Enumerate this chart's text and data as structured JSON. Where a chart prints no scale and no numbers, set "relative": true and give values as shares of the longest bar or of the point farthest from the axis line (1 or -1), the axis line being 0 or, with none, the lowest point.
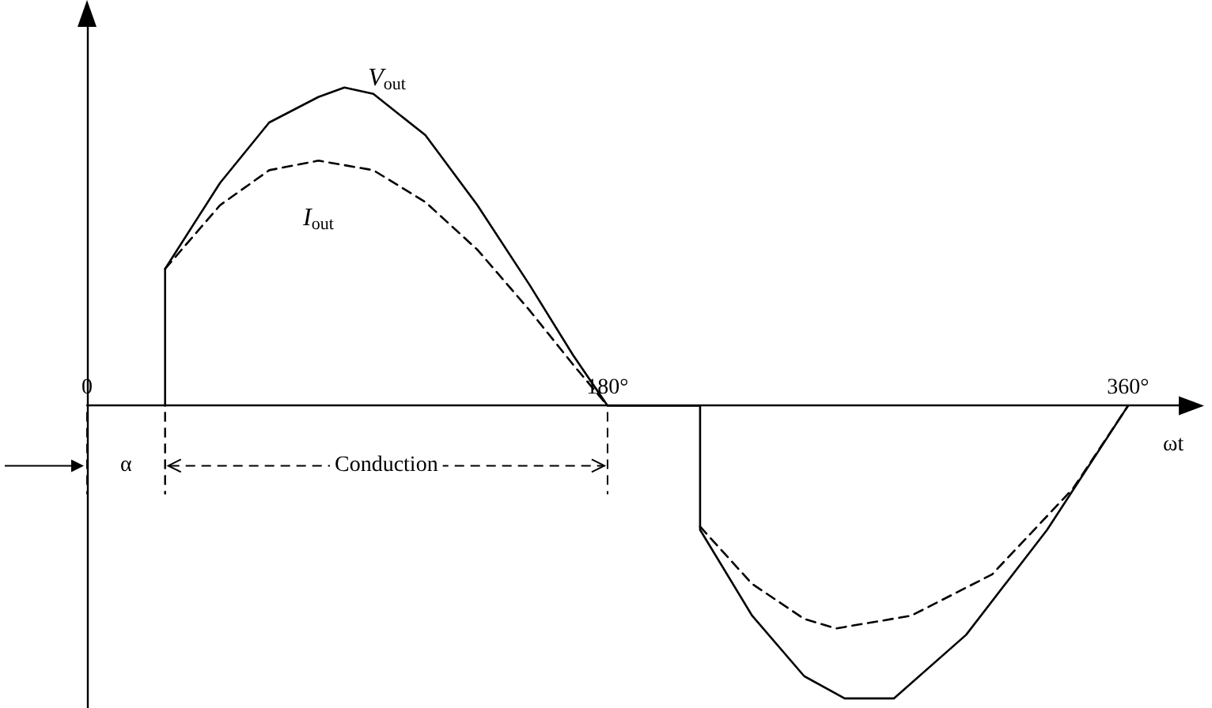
{
  "chart_data": {
    "type": "line",
    "relative": true,
    "xlabel": "ωt",
    "xlim": [
      0,
      383
    ],
    "xticks": [
      0,
      {
        "value": 180,
        "label": "180°"
      },
      {
        "value": 360,
        "label": "360°"
      }
    ],
    "legend": false,
    "marker": "none",
    "grid": false,
    "series": [
      {
        "name": "V$_{out}$",
        "color": "#000000",
        "line_style": "solid",
        "x": [
          27,
          27,
          46,
          63,
          80,
          89,
          99,
          117,
          135,
          153,
          168,
          180,
          212,
          212,
          230,
          248,
          262,
          279,
          304,
          332,
          360
        ],
        "values": [
          0,
          0.43,
          0.7,
          0.89,
          0.97,
          1.0,
          0.98,
          0.85,
          0.63,
          0.38,
          0.16,
          0,
          0,
          -0.39,
          -0.66,
          -0.85,
          -0.92,
          -0.92,
          -0.72,
          -0.39,
          0
        ]
      },
      {
        "name": "I$_{out}$",
        "color": "#000000",
        "line_style": "dashed",
        "x": [
          27,
          46,
          63,
          80,
          99,
          117,
          135,
          153,
          168,
          180,
          196,
          212,
          230,
          248,
          259,
          285,
          313,
          341,
          360
        ],
        "values": [
          0.43,
          0.63,
          0.74,
          0.77,
          0.74,
          0.64,
          0.49,
          0.3,
          0.13,
          0,
          null,
          -0.38,
          -0.56,
          -0.67,
          -0.7,
          -0.66,
          -0.53,
          -0.26,
          0
        ]
      }
    ],
    "annotations": [
      "α",
      "Conduction"
    ]
  }
}
